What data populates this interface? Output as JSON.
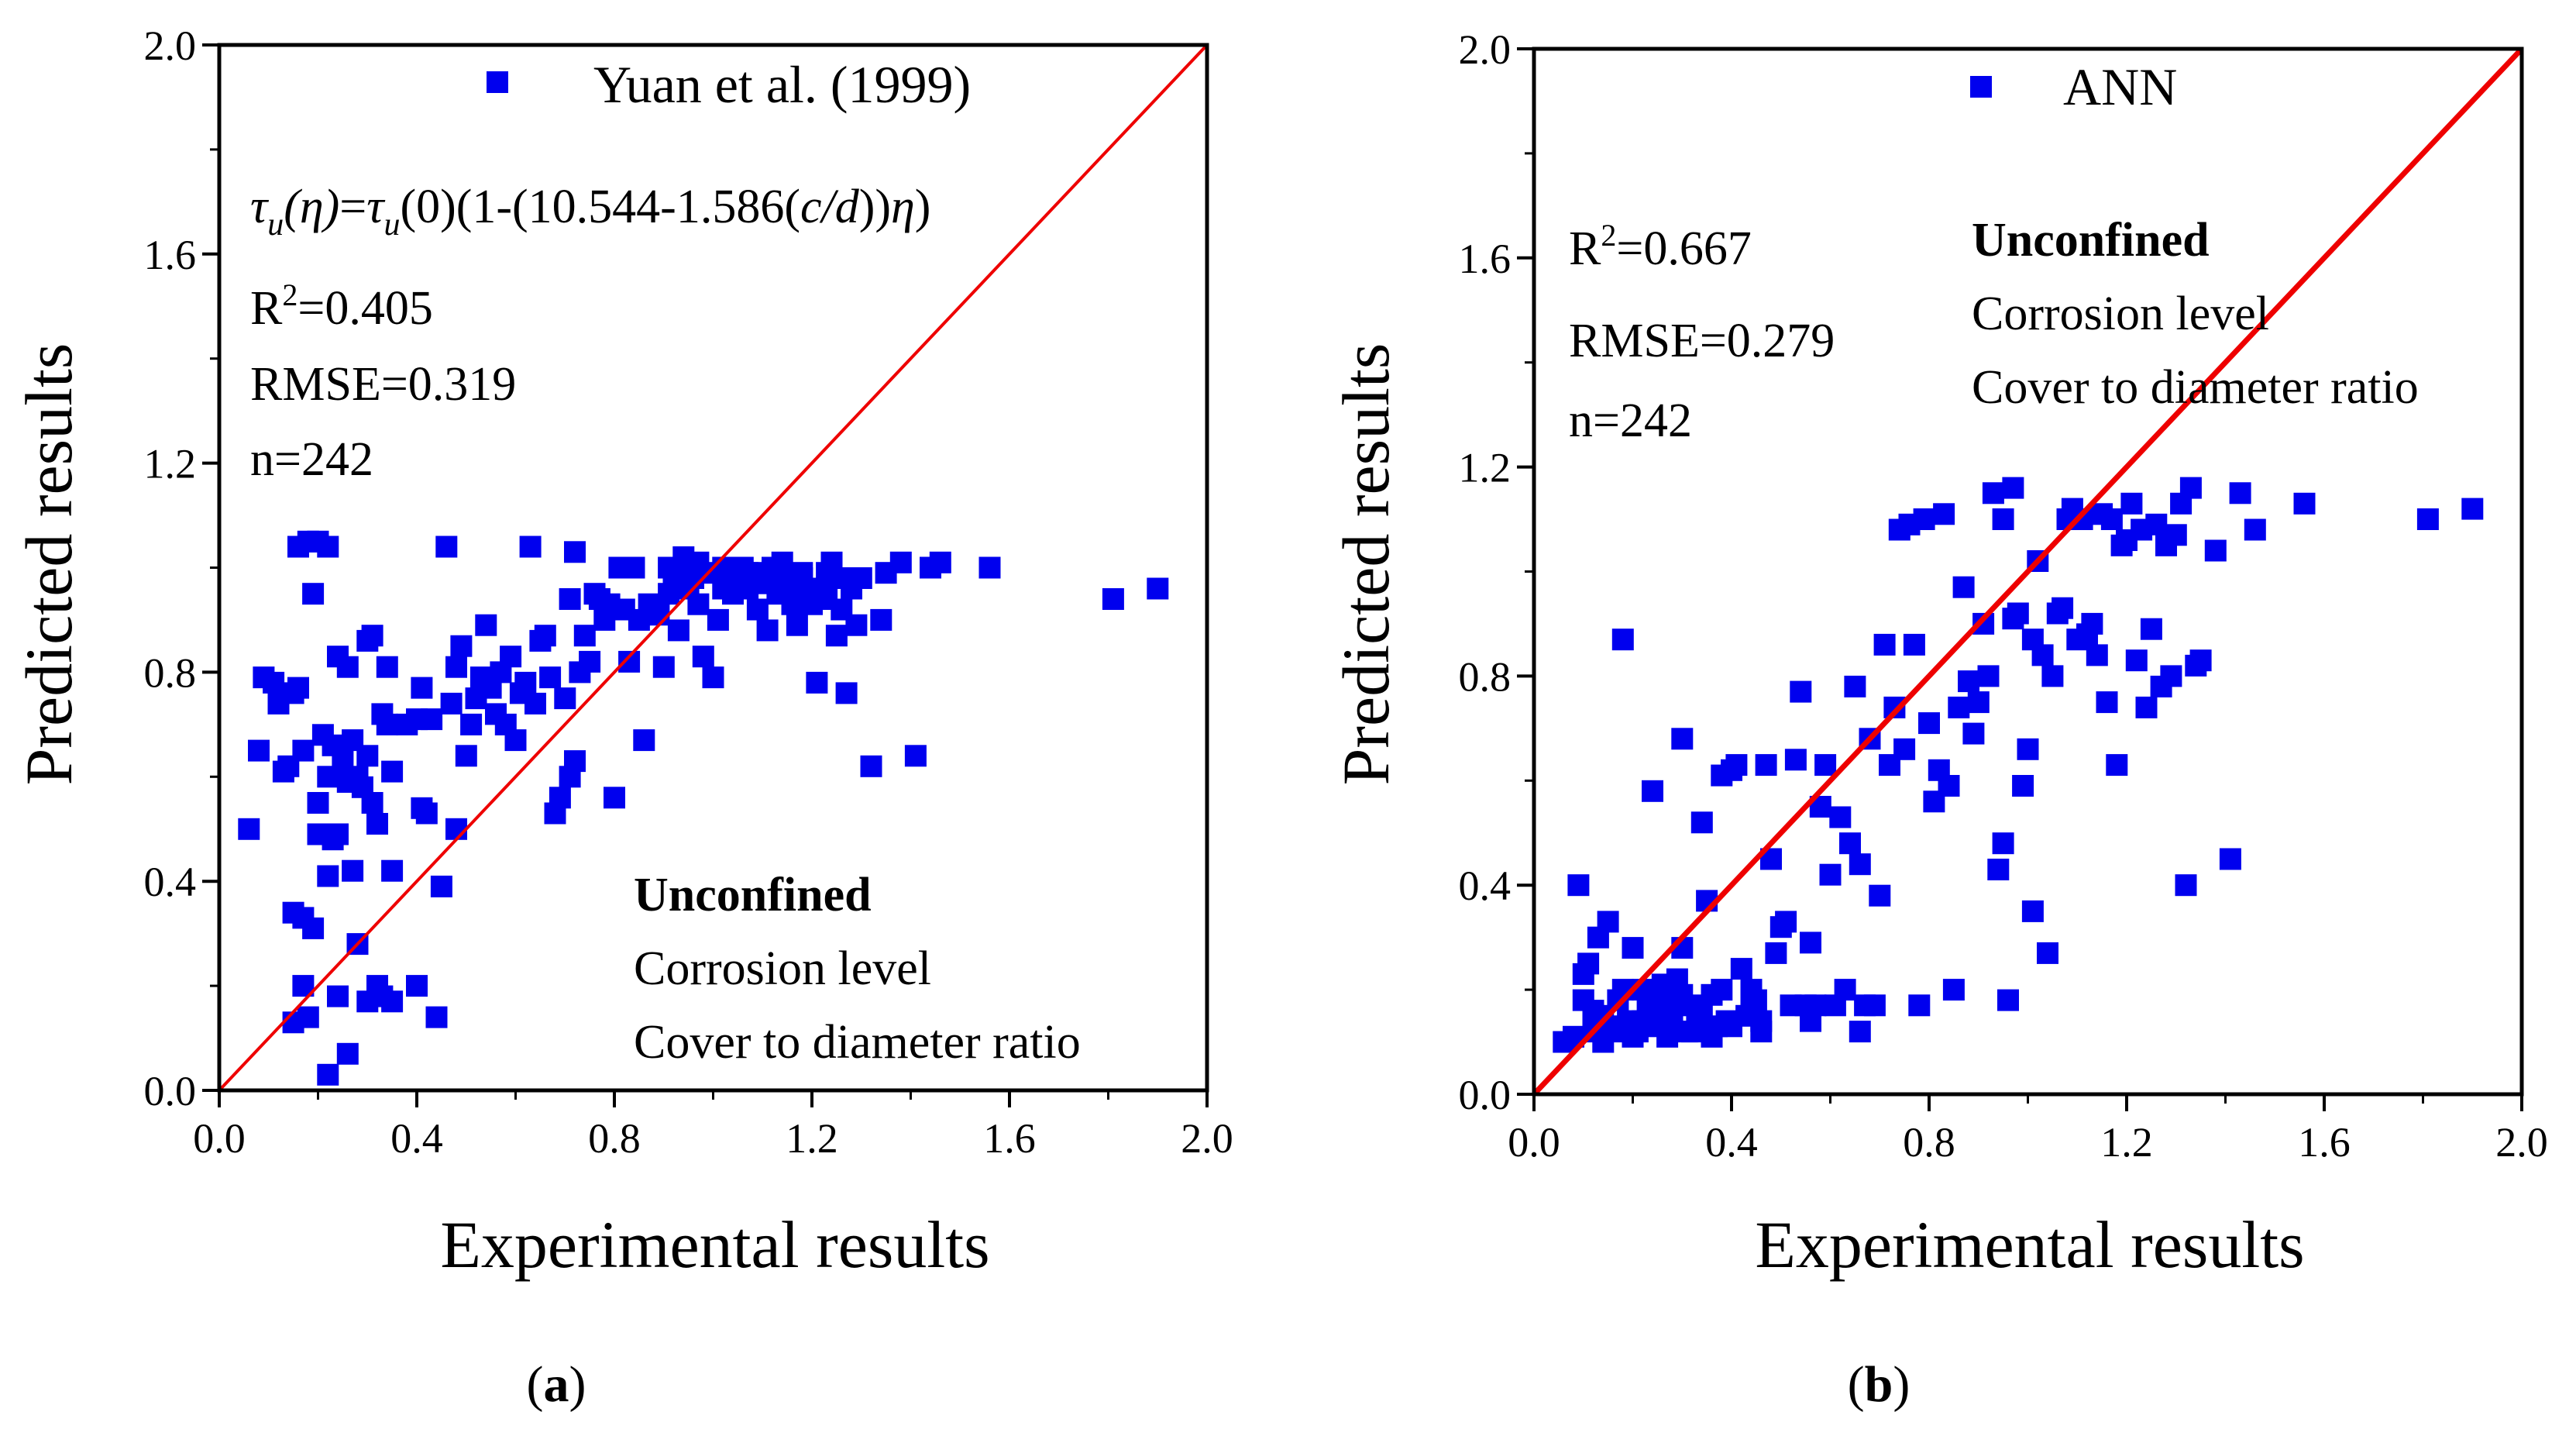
{
  "colors": {
    "marker": "#0000ee",
    "line": "#ee0000",
    "axis": "#000000"
  },
  "chart_data": [
    {
      "type": "scatter",
      "panel_label": "(a)",
      "panel_letter": "a",
      "xlabel": "Experimental results",
      "ylabel": "Predicted results",
      "xlim": [
        0,
        2.0
      ],
      "ylim": [
        0,
        2.0
      ],
      "xticks": [
        "0.0",
        "0.4",
        "0.8",
        "1.2",
        "1.6",
        "2.0"
      ],
      "yticks": [
        "0.0",
        "0.4",
        "0.8",
        "1.2",
        "1.6",
        "2.0"
      ],
      "legend_label": "Yuan et al. (1999)",
      "formula": {
        "tau1": "τ",
        "sub1": "u",
        "eta1": "(η)",
        "eq": "=",
        "tau2": "τ",
        "sub2": "u",
        "zero": "(0)",
        "mid": "(1-(10.544-1.586(",
        "cd": "c/d",
        "close": "))",
        "eta2": "η",
        "end": ")"
      },
      "r2_prefix": "R",
      "r2_sup": "2",
      "r2_value": "=0.405",
      "rmse": "RMSE=0.319",
      "n": "n=242",
      "notes": [
        "Unconfined",
        "Corrosion level",
        "Cover to diameter ratio"
      ],
      "reference_line": [
        [
          0,
          0
        ],
        [
          2.0,
          2.0
        ]
      ],
      "points": [
        [
          0.06,
          0.5
        ],
        [
          0.08,
          0.65
        ],
        [
          0.09,
          0.79
        ],
        [
          0.11,
          0.78
        ],
        [
          0.12,
          0.74
        ],
        [
          0.13,
          0.61
        ],
        [
          0.14,
          0.62
        ],
        [
          0.15,
          0.76
        ],
        [
          0.16,
          0.77
        ],
        [
          0.17,
          0.65
        ],
        [
          0.16,
          1.04
        ],
        [
          0.18,
          1.05
        ],
        [
          0.2,
          1.05
        ],
        [
          0.22,
          1.04
        ],
        [
          0.19,
          0.95
        ],
        [
          0.15,
          0.34
        ],
        [
          0.17,
          0.33
        ],
        [
          0.19,
          0.31
        ],
        [
          0.17,
          0.2
        ],
        [
          0.18,
          0.14
        ],
        [
          0.15,
          0.13
        ],
        [
          0.2,
          0.55
        ],
        [
          0.2,
          0.49
        ],
        [
          0.21,
          0.68
        ],
        [
          0.22,
          0.6
        ],
        [
          0.23,
          0.48
        ],
        [
          0.24,
          0.49
        ],
        [
          0.23,
          0.66
        ],
        [
          0.22,
          0.41
        ],
        [
          0.24,
          0.83
        ],
        [
          0.25,
          0.63
        ],
        [
          0.26,
          0.81
        ],
        [
          0.27,
          0.67
        ],
        [
          0.26,
          0.59
        ],
        [
          0.27,
          0.42
        ],
        [
          0.28,
          0.6
        ],
        [
          0.28,
          0.28
        ],
        [
          0.29,
          0.58
        ],
        [
          0.3,
          0.64
        ],
        [
          0.3,
          0.86
        ],
        [
          0.31,
          0.87
        ],
        [
          0.31,
          0.55
        ],
        [
          0.32,
          0.51
        ],
        [
          0.33,
          0.72
        ],
        [
          0.34,
          0.7
        ],
        [
          0.34,
          0.81
        ],
        [
          0.35,
          0.61
        ],
        [
          0.35,
          0.42
        ],
        [
          0.33,
          0.18
        ],
        [
          0.35,
          0.17
        ],
        [
          0.32,
          0.2
        ],
        [
          0.3,
          0.17
        ],
        [
          0.24,
          0.18
        ],
        [
          0.26,
          0.07
        ],
        [
          0.22,
          0.03
        ],
        [
          0.38,
          0.7
        ],
        [
          0.4,
          0.2
        ],
        [
          0.4,
          0.71
        ],
        [
          0.41,
          0.77
        ],
        [
          0.41,
          0.54
        ],
        [
          0.42,
          0.53
        ],
        [
          0.43,
          0.71
        ],
        [
          0.44,
          0.14
        ],
        [
          0.45,
          0.39
        ],
        [
          0.46,
          1.04
        ],
        [
          0.47,
          0.74
        ],
        [
          0.48,
          0.81
        ],
        [
          0.48,
          0.5
        ],
        [
          0.49,
          0.85
        ],
        [
          0.5,
          0.64
        ],
        [
          0.51,
          0.7
        ],
        [
          0.52,
          0.75
        ],
        [
          0.53,
          0.79
        ],
        [
          0.54,
          0.89
        ],
        [
          0.55,
          0.77
        ],
        [
          0.56,
          0.72
        ],
        [
          0.57,
          0.8
        ],
        [
          0.58,
          0.7
        ],
        [
          0.59,
          0.83
        ],
        [
          0.6,
          0.67
        ],
        [
          0.61,
          0.76
        ],
        [
          0.62,
          0.78
        ],
        [
          0.63,
          1.04
        ],
        [
          0.64,
          0.74
        ],
        [
          0.65,
          0.86
        ],
        [
          0.66,
          0.87
        ],
        [
          0.67,
          0.79
        ],
        [
          0.68,
          0.53
        ],
        [
          0.69,
          0.56
        ],
        [
          0.7,
          0.75
        ],
        [
          0.71,
          0.6
        ],
        [
          0.71,
          0.94
        ],
        [
          0.72,
          0.63
        ],
        [
          0.72,
          1.03
        ],
        [
          0.73,
          0.8
        ],
        [
          0.74,
          0.87
        ],
        [
          0.75,
          0.82
        ],
        [
          0.76,
          0.95
        ],
        [
          0.77,
          0.94
        ],
        [
          0.78,
          0.9
        ],
        [
          0.79,
          0.93
        ],
        [
          0.8,
          0.56
        ],
        [
          0.81,
          1.0
        ],
        [
          0.82,
          0.92
        ],
        [
          0.83,
          0.82
        ],
        [
          0.84,
          1.0
        ],
        [
          0.85,
          0.9
        ],
        [
          0.86,
          0.67
        ],
        [
          0.87,
          0.93
        ],
        [
          0.88,
          0.92
        ],
        [
          0.89,
          0.91
        ],
        [
          0.9,
          0.81
        ],
        [
          0.91,
          1.0
        ],
        [
          0.92,
          0.99
        ],
        [
          0.93,
          0.88
        ],
        [
          0.94,
          1.02
        ],
        [
          0.95,
          0.96
        ],
        [
          0.96,
          0.98
        ],
        [
          0.97,
          1.01
        ],
        [
          0.98,
          0.83
        ],
        [
          0.99,
          0.99
        ],
        [
          1.0,
          0.79
        ],
        [
          1.01,
          0.9
        ],
        [
          1.02,
          1.0
        ],
        [
          1.03,
          0.99
        ],
        [
          1.04,
          0.95
        ],
        [
          1.05,
          0.98
        ],
        [
          1.06,
          1.0
        ],
        [
          1.07,
          0.96
        ],
        [
          1.08,
          0.99
        ],
        [
          1.09,
          0.92
        ],
        [
          1.1,
          0.97
        ],
        [
          1.11,
          0.88
        ],
        [
          1.12,
          1.0
        ],
        [
          1.13,
          0.95
        ],
        [
          1.14,
          1.01
        ],
        [
          1.15,
          0.97
        ],
        [
          1.16,
          0.93
        ],
        [
          1.17,
          0.89
        ],
        [
          1.18,
          0.99
        ],
        [
          1.19,
          0.96
        ],
        [
          1.2,
          0.93
        ],
        [
          1.21,
          0.78
        ],
        [
          1.22,
          0.95
        ],
        [
          1.23,
          0.99
        ],
        [
          1.24,
          1.01
        ],
        [
          1.25,
          0.87
        ],
        [
          1.26,
          0.92
        ],
        [
          1.27,
          0.76
        ],
        [
          1.28,
          0.96
        ],
        [
          1.29,
          0.89
        ],
        [
          1.3,
          0.98
        ],
        [
          1.32,
          0.62
        ],
        [
          1.34,
          0.9
        ],
        [
          1.35,
          0.99
        ],
        [
          1.38,
          1.01
        ],
        [
          1.41,
          0.64
        ],
        [
          1.44,
          1.0
        ],
        [
          1.46,
          1.01
        ],
        [
          1.56,
          1.0
        ],
        [
          1.81,
          0.94
        ],
        [
          1.9,
          0.96
        ],
        [
          1.18,
          0.98
        ],
        [
          1.14,
          0.96
        ],
        [
          1.23,
          0.94
        ],
        [
          1.07,
          0.99
        ],
        [
          0.97,
          0.93
        ],
        [
          1.02,
          0.96
        ],
        [
          1.26,
          0.98
        ],
        [
          0.91,
          0.95
        ]
      ]
    },
    {
      "type": "scatter",
      "panel_label": "(b)",
      "panel_letter": "b",
      "xlabel": "Experimental results",
      "ylabel": "Predicted results",
      "xlim": [
        0,
        2.0
      ],
      "ylim": [
        0,
        2.0
      ],
      "xticks": [
        "0.0",
        "0.4",
        "0.8",
        "1.2",
        "1.6",
        "2.0"
      ],
      "yticks": [
        "0.0",
        "0.4",
        "0.8",
        "1.2",
        "1.6",
        "2.0"
      ],
      "legend_label": "ANN",
      "r2_prefix": "R",
      "r2_sup": "2",
      "r2_value": "=0.667",
      "rmse": "RMSE=0.279",
      "n": "n=242",
      "notes": [
        "Unconfined",
        "Corrosion level",
        "Cover to diameter ratio"
      ],
      "reference_line": [
        [
          0,
          0
        ],
        [
          2.0,
          2.0
        ]
      ],
      "points": [
        [
          0.06,
          0.1
        ],
        [
          0.08,
          0.11
        ],
        [
          0.09,
          0.4
        ],
        [
          0.1,
          0.23
        ],
        [
          0.11,
          0.25
        ],
        [
          0.12,
          0.12
        ],
        [
          0.13,
          0.3
        ],
        [
          0.14,
          0.15
        ],
        [
          0.15,
          0.33
        ],
        [
          0.16,
          0.12
        ],
        [
          0.17,
          0.18
        ],
        [
          0.18,
          0.87
        ],
        [
          0.19,
          0.14
        ],
        [
          0.2,
          0.28
        ],
        [
          0.21,
          0.12
        ],
        [
          0.22,
          0.2
        ],
        [
          0.23,
          0.16
        ],
        [
          0.24,
          0.58
        ],
        [
          0.25,
          0.13
        ],
        [
          0.26,
          0.19
        ],
        [
          0.27,
          0.11
        ],
        [
          0.28,
          0.15
        ],
        [
          0.29,
          0.22
        ],
        [
          0.3,
          0.68
        ],
        [
          0.3,
          0.28
        ],
        [
          0.31,
          0.12
        ],
        [
          0.32,
          0.17
        ],
        [
          0.33,
          0.14
        ],
        [
          0.34,
          0.52
        ],
        [
          0.35,
          0.37
        ],
        [
          0.36,
          0.19
        ],
        [
          0.37,
          0.13
        ],
        [
          0.38,
          0.61
        ],
        [
          0.39,
          0.14
        ],
        [
          0.4,
          0.62
        ],
        [
          0.41,
          0.63
        ],
        [
          0.42,
          0.24
        ],
        [
          0.43,
          0.15
        ],
        [
          0.44,
          0.2
        ],
        [
          0.45,
          0.18
        ],
        [
          0.46,
          0.12
        ],
        [
          0.47,
          0.63
        ],
        [
          0.48,
          0.45
        ],
        [
          0.49,
          0.27
        ],
        [
          0.5,
          0.32
        ],
        [
          0.51,
          0.33
        ],
        [
          0.52,
          0.17
        ],
        [
          0.53,
          0.64
        ],
        [
          0.54,
          0.77
        ],
        [
          0.55,
          0.17
        ],
        [
          0.56,
          0.29
        ],
        [
          0.57,
          0.17
        ],
        [
          0.58,
          0.55
        ],
        [
          0.59,
          0.63
        ],
        [
          0.6,
          0.42
        ],
        [
          0.61,
          0.17
        ],
        [
          0.62,
          0.53
        ],
        [
          0.63,
          0.2
        ],
        [
          0.64,
          0.48
        ],
        [
          0.65,
          0.78
        ],
        [
          0.66,
          0.44
        ],
        [
          0.67,
          0.17
        ],
        [
          0.68,
          0.68
        ],
        [
          0.69,
          0.17
        ],
        [
          0.7,
          0.38
        ],
        [
          0.71,
          0.86
        ],
        [
          0.72,
          0.63
        ],
        [
          0.73,
          0.74
        ],
        [
          0.74,
          1.08
        ],
        [
          0.75,
          0.66
        ],
        [
          0.76,
          1.09
        ],
        [
          0.77,
          0.86
        ],
        [
          0.78,
          0.17
        ],
        [
          0.79,
          1.1
        ],
        [
          0.8,
          0.71
        ],
        [
          0.81,
          0.56
        ],
        [
          0.82,
          0.62
        ],
        [
          0.83,
          1.11
        ],
        [
          0.84,
          0.59
        ],
        [
          0.85,
          0.2
        ],
        [
          0.86,
          0.74
        ],
        [
          0.87,
          0.97
        ],
        [
          0.88,
          0.79
        ],
        [
          0.89,
          0.69
        ],
        [
          0.9,
          0.75
        ],
        [
          0.91,
          0.9
        ],
        [
          0.92,
          0.8
        ],
        [
          0.93,
          1.15
        ],
        [
          0.94,
          0.43
        ],
        [
          0.95,
          0.48
        ],
        [
          0.96,
          0.18
        ],
        [
          0.97,
          1.16
        ],
        [
          0.98,
          0.92
        ],
        [
          0.99,
          0.59
        ],
        [
          1.0,
          0.66
        ],
        [
          1.01,
          0.35
        ],
        [
          1.02,
          1.02
        ],
        [
          1.03,
          0.84
        ],
        [
          1.04,
          0.27
        ],
        [
          1.05,
          0.8
        ],
        [
          1.06,
          0.92
        ],
        [
          1.07,
          0.93
        ],
        [
          1.08,
          1.1
        ],
        [
          1.09,
          1.12
        ],
        [
          1.1,
          0.87
        ],
        [
          1.11,
          1.1
        ],
        [
          1.12,
          0.88
        ],
        [
          1.13,
          0.9
        ],
        [
          1.14,
          0.84
        ],
        [
          1.15,
          1.11
        ],
        [
          1.16,
          0.75
        ],
        [
          1.17,
          1.1
        ],
        [
          1.18,
          0.63
        ],
        [
          1.19,
          1.05
        ],
        [
          1.2,
          1.06
        ],
        [
          1.21,
          1.13
        ],
        [
          1.22,
          0.83
        ],
        [
          1.23,
          1.08
        ],
        [
          1.24,
          0.74
        ],
        [
          1.25,
          0.89
        ],
        [
          1.26,
          1.09
        ],
        [
          1.27,
          0.78
        ],
        [
          1.28,
          1.05
        ],
        [
          1.29,
          0.8
        ],
        [
          1.3,
          1.07
        ],
        [
          1.31,
          1.13
        ],
        [
          1.32,
          0.4
        ],
        [
          1.33,
          1.16
        ],
        [
          1.34,
          0.82
        ],
        [
          1.35,
          0.83
        ],
        [
          1.38,
          1.04
        ],
        [
          1.41,
          0.45
        ],
        [
          1.43,
          1.15
        ],
        [
          1.46,
          1.08
        ],
        [
          1.56,
          1.13
        ],
        [
          1.81,
          1.1
        ],
        [
          1.9,
          1.12
        ],
        [
          0.97,
          0.91
        ],
        [
          1.01,
          0.87
        ],
        [
          0.95,
          1.1
        ],
        [
          0.1,
          0.18
        ],
        [
          0.12,
          0.16
        ],
        [
          0.14,
          0.1
        ],
        [
          0.16,
          0.13
        ],
        [
          0.18,
          0.2
        ],
        [
          0.2,
          0.11
        ],
        [
          0.22,
          0.14
        ],
        [
          0.24,
          0.17
        ],
        [
          0.26,
          0.21
        ],
        [
          0.28,
          0.13
        ],
        [
          0.3,
          0.19
        ],
        [
          0.32,
          0.12
        ],
        [
          0.34,
          0.16
        ],
        [
          0.36,
          0.11
        ],
        [
          0.38,
          0.2
        ],
        [
          0.4,
          0.13
        ],
        [
          0.44,
          0.19
        ],
        [
          0.46,
          0.14
        ],
        [
          0.56,
          0.14
        ],
        [
          0.66,
          0.12
        ]
      ]
    }
  ]
}
